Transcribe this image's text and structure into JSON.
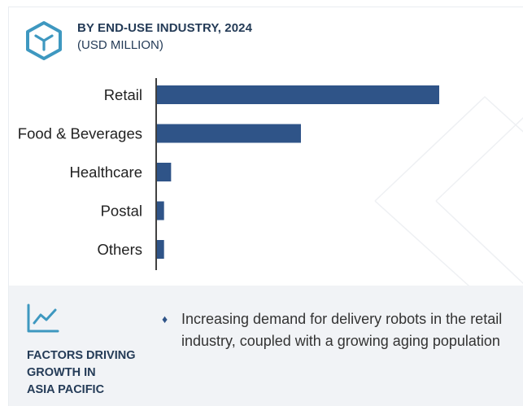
{
  "header": {
    "title": "BY END-USE INDUSTRY, 2024",
    "subtitle": "(USD MILLION)",
    "icon": "cube-icon"
  },
  "colors": {
    "bar": "#2f5488",
    "heading": "#243b57",
    "accent": "#3e98c0",
    "footer_bg": "#f1f3f6"
  },
  "chart_data": {
    "type": "bar",
    "orientation": "horizontal",
    "title": "BY END-USE INDUSTRY, 2024",
    "subtitle": "(USD MILLION)",
    "categories": [
      "Retail",
      "Food & Beverages",
      "Healthcare",
      "Postal",
      "Others"
    ],
    "values": [
      100,
      51,
      5,
      2.5,
      2.5
    ],
    "xlabel": "",
    "ylabel": "",
    "xlim": [
      0,
      100
    ],
    "grid": false,
    "value_axis_labeled": false
  },
  "footer": {
    "icon": "trend-line-icon",
    "heading": "FACTORS DRIVING\nGROWTH IN\nASIA PACIFIC",
    "bullet_icon": "diamond-icon",
    "bullet_glyph": "♦",
    "items": [
      "Increasing demand for delivery robots in the retail industry, coupled with a growing aging population"
    ]
  }
}
